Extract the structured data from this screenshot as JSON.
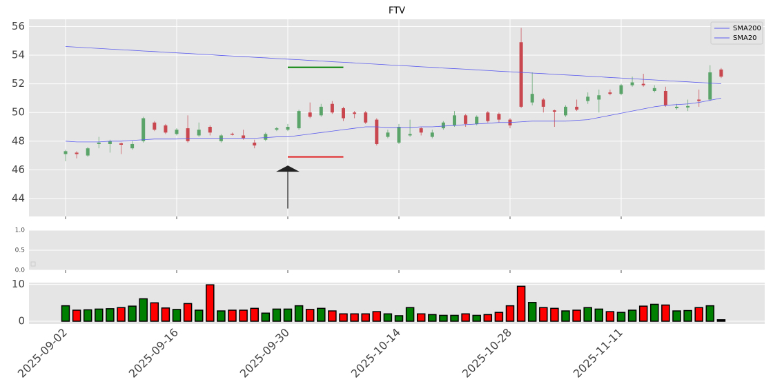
{
  "chart_data": [
    {
      "type": "candlestick",
      "title": "FTV",
      "open": [
        47.1,
        47.2,
        47.0,
        47.8,
        47.8,
        47.85,
        47.5,
        48.0,
        49.3,
        49.1,
        48.5,
        48.9,
        48.4,
        49.0,
        48.0,
        48.52,
        48.4,
        47.9,
        48.1,
        48.8,
        48.8,
        48.9,
        50.0,
        49.8,
        50.6,
        50.3,
        50.0,
        50.0,
        49.5,
        48.3,
        47.9,
        48.4,
        48.9,
        48.3,
        48.9,
        49.1,
        49.8,
        49.2,
        50.0,
        49.9,
        49.5,
        54.9,
        50.7,
        50.9,
        50.15,
        49.8,
        50.4,
        50.8,
        50.9,
        51.4,
        51.3,
        51.9,
        52.0,
        51.5,
        51.5,
        50.3,
        50.35,
        50.9,
        50.9,
        53.0
      ],
      "high": [
        47.4,
        47.3,
        47.6,
        48.3,
        48.1,
        47.9,
        48.0,
        49.7,
        49.4,
        49.2,
        48.9,
        49.8,
        49.3,
        49.1,
        48.5,
        48.6,
        48.8,
        48.1,
        48.6,
        49.0,
        49.2,
        50.2,
        50.7,
        50.6,
        50.8,
        50.4,
        50.1,
        50.1,
        49.6,
        48.8,
        49.2,
        49.5,
        49.0,
        48.8,
        49.4,
        50.1,
        49.9,
        49.8,
        50.1,
        50.0,
        49.6,
        55.9,
        52.8,
        51.0,
        50.2,
        50.5,
        50.9,
        51.4,
        51.6,
        51.6,
        52.0,
        52.5,
        52.7,
        51.9,
        51.8,
        50.6,
        50.9,
        51.6,
        53.3,
        53.1
      ],
      "low": [
        46.6,
        46.8,
        46.9,
        47.5,
        47.2,
        47.1,
        47.4,
        47.9,
        48.7,
        48.5,
        48.4,
        47.9,
        48.3,
        48.4,
        47.9,
        48.4,
        48.1,
        47.5,
        48.0,
        48.7,
        48.7,
        48.8,
        49.6,
        49.7,
        49.9,
        49.4,
        49.6,
        49.2,
        47.7,
        48.2,
        47.8,
        48.3,
        48.4,
        48.2,
        48.8,
        49.0,
        49.0,
        49.1,
        49.3,
        49.3,
        48.9,
        50.3,
        50.5,
        50.0,
        49.0,
        49.7,
        50.1,
        50.6,
        50.0,
        51.2,
        51.2,
        51.8,
        51.8,
        51.4,
        50.4,
        50.2,
        50.1,
        50.4,
        50.8,
        52.4
      ],
      "close": [
        47.3,
        47.1,
        47.5,
        47.9,
        48.0,
        47.75,
        47.8,
        49.6,
        48.8,
        48.6,
        48.8,
        48.0,
        48.8,
        48.6,
        48.4,
        48.45,
        48.2,
        47.7,
        48.5,
        48.9,
        49.0,
        50.1,
        49.7,
        50.4,
        50.0,
        49.6,
        49.9,
        49.3,
        47.8,
        48.6,
        49.0,
        48.5,
        48.6,
        48.6,
        49.3,
        49.8,
        49.2,
        49.7,
        49.4,
        49.5,
        49.1,
        50.4,
        51.3,
        50.4,
        50.05,
        50.4,
        50.2,
        51.1,
        51.2,
        51.3,
        51.9,
        52.1,
        51.9,
        51.7,
        50.5,
        50.4,
        50.45,
        50.8,
        52.8,
        52.5
      ],
      "up_color": "#5aa469",
      "down_color": "#c9474f",
      "series": [
        {
          "name": "SMA200",
          "color": "#5a5aee",
          "values": [
            54.6,
            54.56,
            54.51,
            54.47,
            54.42,
            54.38,
            54.34,
            54.29,
            54.25,
            54.2,
            54.16,
            54.12,
            54.07,
            54.03,
            53.98,
            53.94,
            53.9,
            53.85,
            53.81,
            53.76,
            53.72,
            53.68,
            53.63,
            53.59,
            53.54,
            53.5,
            53.46,
            53.41,
            53.37,
            53.32,
            53.28,
            53.24,
            53.19,
            53.15,
            53.1,
            53.06,
            53.02,
            52.97,
            52.93,
            52.88,
            52.84,
            52.8,
            52.75,
            52.71,
            52.66,
            52.62,
            52.58,
            52.53,
            52.49,
            52.44,
            52.4,
            52.36,
            52.31,
            52.27,
            52.22,
            52.18,
            52.14,
            52.09,
            52.05,
            52.0
          ]
        },
        {
          "name": "SMA20",
          "color": "#5a5aee",
          "values": [
            48.0,
            47.95,
            47.95,
            47.95,
            48.0,
            48.0,
            48.05,
            48.1,
            48.15,
            48.15,
            48.15,
            48.2,
            48.2,
            48.2,
            48.2,
            48.2,
            48.2,
            48.2,
            48.25,
            48.3,
            48.3,
            48.4,
            48.5,
            48.6,
            48.7,
            48.8,
            48.9,
            49.0,
            49.0,
            48.95,
            48.95,
            48.95,
            49.0,
            49.0,
            49.05,
            49.1,
            49.15,
            49.2,
            49.25,
            49.3,
            49.3,
            49.35,
            49.4,
            49.4,
            49.4,
            49.4,
            49.45,
            49.5,
            49.65,
            49.8,
            49.95,
            50.1,
            50.25,
            50.4,
            50.5,
            50.55,
            50.6,
            50.7,
            50.85,
            51.0
          ]
        }
      ],
      "hlines": [
        {
          "value": 53.15,
          "color": "#008000",
          "span": [
            20,
            25
          ]
        },
        {
          "value": 46.9,
          "color": "#e02020",
          "span": [
            20,
            25
          ]
        }
      ],
      "arrow": {
        "x": 20,
        "y": [
          43.3,
          46.3
        ],
        "color": "#222"
      },
      "ylim": [
        42.75,
        56.5
      ],
      "yticks": [
        44,
        46,
        48,
        50,
        52,
        54,
        56
      ],
      "grid": true,
      "legend": "upper right"
    },
    {
      "type": "empty",
      "ylim": [
        0,
        1
      ],
      "yticks": [
        {
          "value": 0,
          "label": "0.0"
        },
        {
          "value": 0.5,
          "label": "0.5"
        },
        {
          "value": 1,
          "label": "1.0"
        }
      ],
      "grid": true
    },
    {
      "type": "bar",
      "categories": [
        "2025-09-02",
        null,
        null,
        null,
        null,
        null,
        null,
        null,
        null,
        null,
        "2025-09-16",
        null,
        null,
        null,
        null,
        null,
        null,
        null,
        null,
        null,
        "2025-09-30",
        null,
        null,
        null,
        null,
        null,
        null,
        null,
        null,
        null,
        "2025-10-14",
        null,
        null,
        null,
        null,
        null,
        null,
        null,
        null,
        null,
        "2025-10-28",
        null,
        null,
        null,
        null,
        null,
        null,
        null,
        null,
        null,
        "2025-11-11",
        null,
        null,
        null,
        null,
        null,
        null,
        null,
        null,
        null
      ],
      "values": [
        4.2,
        3.0,
        3.1,
        3.3,
        3.4,
        3.7,
        4.1,
        6.1,
        5.0,
        3.6,
        3.2,
        4.8,
        3.0,
        9.9,
        2.8,
        3.0,
        3.0,
        3.5,
        2.2,
        3.3,
        3.3,
        4.2,
        3.2,
        3.5,
        2.8,
        2.0,
        2.0,
        2.0,
        2.6,
        2.0,
        1.5,
        3.7,
        2.0,
        1.8,
        1.6,
        1.6,
        2.0,
        1.6,
        1.8,
        2.4,
        4.2,
        9.5,
        5.1,
        3.7,
        3.5,
        2.8,
        3.0,
        3.7,
        3.3,
        2.6,
        2.4,
        3.0,
        4.1,
        4.6,
        4.4,
        2.8,
        2.9,
        3.7,
        4.2,
        0.4
      ],
      "colors": [
        "green",
        "red",
        "green",
        "green",
        "green",
        "red",
        "green",
        "green",
        "red",
        "red",
        "green",
        "red",
        "green",
        "red",
        "green",
        "red",
        "red",
        "red",
        "green",
        "green",
        "green",
        "green",
        "red",
        "green",
        "red",
        "red",
        "red",
        "red",
        "red",
        "green",
        "green",
        "green",
        "red",
        "green",
        "green",
        "green",
        "red",
        "green",
        "red",
        "red",
        "red",
        "red",
        "green",
        "red",
        "red",
        "green",
        "red",
        "green",
        "green",
        "red",
        "green",
        "green",
        "red",
        "green",
        "red",
        "green",
        "green",
        "red",
        "green",
        "black"
      ],
      "ylim": [
        -0.75,
        10.5
      ],
      "yticks": [
        0,
        10
      ],
      "grid": true
    }
  ]
}
